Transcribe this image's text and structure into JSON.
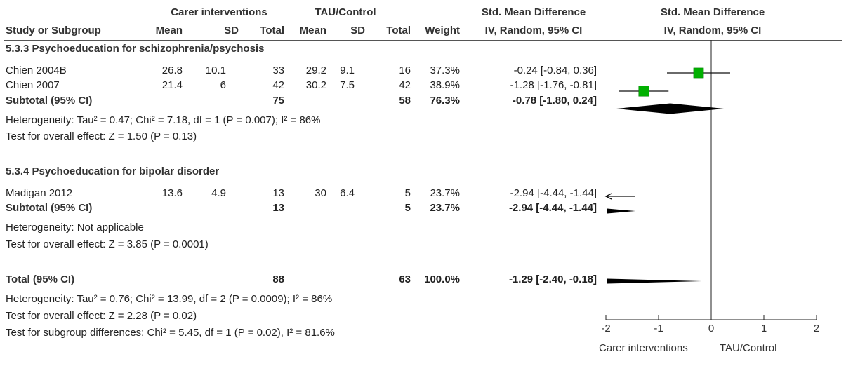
{
  "header": {
    "group1": "Carer interventions",
    "group2": "TAU/Control",
    "smd_title": "Std. Mean Difference",
    "smd_title_plot": "Std. Mean Difference",
    "col_study": "Study or Subgroup",
    "col_mean1": "Mean",
    "col_sd1": "SD",
    "col_total1": "Total",
    "col_mean2": "Mean",
    "col_sd2": "SD",
    "col_total2": "Total",
    "col_weight": "Weight",
    "col_method": "IV, Random, 95% CI",
    "col_method_plot": "IV, Random, 95% CI"
  },
  "subgroups": [
    {
      "title": "5.3.3 Psychoeducation for schizophrenia/psychosis",
      "studies": [
        {
          "name": "Chien 2004B",
          "mean1": "26.8",
          "sd1": "10.1",
          "total1": "33",
          "mean2": "29.2",
          "sd2": "9.1",
          "total2": "16",
          "weight": "37.3%",
          "ci": "-0.24 [-0.84, 0.36]"
        },
        {
          "name": "Chien 2007",
          "mean1": "21.4",
          "sd1": "6",
          "total1": "42",
          "mean2": "30.2",
          "sd2": "7.5",
          "total2": "42",
          "weight": "38.9%",
          "ci": "-1.28 [-1.76, -0.81]"
        }
      ],
      "subtotal": {
        "label": "Subtotal (95% CI)",
        "total1": "75",
        "total2": "58",
        "weight": "76.3%",
        "ci": "-0.78 [-1.80, 0.24]"
      },
      "heterogeneity": "Heterogeneity: Tau² = 0.47; Chi² = 7.18, df = 1 (P = 0.007); I² = 86%",
      "overall": "Test for overall effect: Z = 1.50 (P = 0.13)"
    },
    {
      "title": "5.3.4 Psychoeducation for bipolar disorder",
      "studies": [
        {
          "name": "Madigan 2012",
          "mean1": "13.6",
          "sd1": "4.9",
          "total1": "13",
          "mean2": "30",
          "sd2": "6.4",
          "total2": "5",
          "weight": "23.7%",
          "ci": "-2.94 [-4.44, -1.44]"
        }
      ],
      "subtotal": {
        "label": "Subtotal (95% CI)",
        "total1": "13",
        "total2": "5",
        "weight": "23.7%",
        "ci": "-2.94 [-4.44, -1.44]"
      },
      "heterogeneity": "Heterogeneity: Not applicable",
      "overall": "Test for overall effect: Z = 3.85 (P = 0.0001)"
    }
  ],
  "total": {
    "label": "Total (95% CI)",
    "total1": "88",
    "total2": "63",
    "weight": "100.0%",
    "ci": "-1.29 [-2.40, -0.18]"
  },
  "total_heterogeneity": "Heterogeneity: Tau² = 0.76; Chi² = 13.99, df = 2 (P = 0.0009); I² = 86%",
  "total_overall": "Test for overall effect: Z = 2.28 (P = 0.02)",
  "subgroup_diff": "Test for subgroup differences: Chi² = 5.45, df = 1 (P = 0.02), I² = 81.6%",
  "axis": {
    "label_left": "Carer interventions",
    "label_right": "TAU/Control"
  },
  "chart_data": {
    "type": "forest",
    "xlim": [
      -2,
      2
    ],
    "ticks": [
      "-2",
      "-1",
      "0",
      "1",
      "2"
    ],
    "tick_values": [
      -2,
      -1,
      0,
      1,
      2
    ],
    "study_color": "#00b000",
    "diamond_color": "#000000",
    "studies": [
      {
        "name": "Chien 2004B",
        "smd": -0.24,
        "lo": -0.84,
        "hi": 0.36,
        "weight": 37.3
      },
      {
        "name": "Chien 2007",
        "smd": -1.28,
        "lo": -1.76,
        "hi": -0.81,
        "weight": 38.9
      },
      {
        "name": "Madigan 2012",
        "smd": -2.94,
        "lo": -4.44,
        "hi": -1.44,
        "weight": 23.7
      }
    ],
    "summaries": [
      {
        "name": "Subtotal 5.3.3",
        "smd": -0.78,
        "lo": -1.8,
        "hi": 0.24
      },
      {
        "name": "Subtotal 5.3.4",
        "smd": -2.94,
        "lo": -4.44,
        "hi": -1.44
      },
      {
        "name": "Total",
        "smd": -1.29,
        "lo": -2.4,
        "hi": -0.18
      }
    ]
  }
}
